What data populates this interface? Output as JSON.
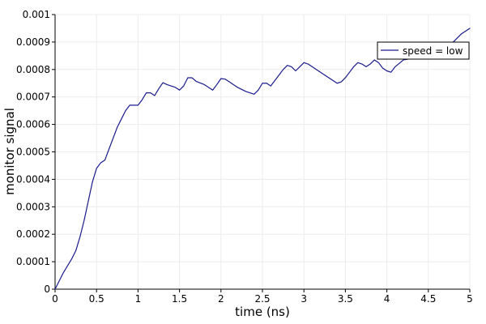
{
  "chart_data": {
    "type": "line",
    "title": "",
    "xlabel": "time (ns)",
    "ylabel": "monitor signal",
    "xlim": [
      0,
      5
    ],
    "ylim": [
      0,
      0.001
    ],
    "x_ticks": [
      "0",
      "0.5",
      "1",
      "1.5",
      "2",
      "2.5",
      "3",
      "3.5",
      "4",
      "4.5",
      "5"
    ],
    "y_ticks": [
      "0",
      "0.0001",
      "0.0002",
      "0.0003",
      "0.0004",
      "0.0005",
      "0.0006",
      "0.0007",
      "0.0008",
      "0.0009",
      "0.001"
    ],
    "grid": true,
    "legend_position": "top-right",
    "series": [
      {
        "name": "speed = low",
        "color": "#1a1a8c",
        "x": [
          0,
          0.1,
          0.2,
          0.25,
          0.3,
          0.35,
          0.4,
          0.45,
          0.5,
          0.55,
          0.6,
          0.65,
          0.7,
          0.75,
          0.8,
          0.85,
          0.9,
          0.95,
          1.0,
          1.05,
          1.1,
          1.15,
          1.2,
          1.25,
          1.3,
          1.35,
          1.4,
          1.45,
          1.5,
          1.55,
          1.6,
          1.65,
          1.7,
          1.8,
          1.9,
          1.95,
          2.0,
          2.05,
          2.1,
          2.2,
          2.3,
          2.4,
          2.45,
          2.5,
          2.55,
          2.6,
          2.65,
          2.7,
          2.75,
          2.8,
          2.85,
          2.9,
          2.95,
          3.0,
          3.05,
          3.1,
          3.2,
          3.3,
          3.4,
          3.45,
          3.5,
          3.55,
          3.6,
          3.65,
          3.7,
          3.75,
          3.8,
          3.85,
          3.9,
          3.95,
          4.0,
          4.05,
          4.1,
          4.2,
          4.3,
          4.4,
          4.5,
          4.6,
          4.7,
          4.8,
          4.9,
          5.0
        ],
        "values": [
          0,
          6e-05,
          0.00011,
          0.00014,
          0.00019,
          0.00025,
          0.00032,
          0.00039,
          0.00044,
          0.00046,
          0.00047,
          0.00051,
          0.00055,
          0.00059,
          0.00062,
          0.00065,
          0.00067,
          0.00067,
          0.00067,
          0.00069,
          0.000715,
          0.000715,
          0.000705,
          0.00073,
          0.000752,
          0.000745,
          0.00074,
          0.000735,
          0.000725,
          0.00074,
          0.00077,
          0.00077,
          0.000757,
          0.000745,
          0.000725,
          0.000745,
          0.000767,
          0.000765,
          0.000755,
          0.000735,
          0.00072,
          0.00071,
          0.000725,
          0.00075,
          0.00075,
          0.00074,
          0.00076,
          0.00078,
          0.0008,
          0.000815,
          0.00081,
          0.000795,
          0.00081,
          0.000825,
          0.00082,
          0.00081,
          0.00079,
          0.00077,
          0.00075,
          0.000755,
          0.00077,
          0.00079,
          0.00081,
          0.000825,
          0.00082,
          0.00081,
          0.00082,
          0.000835,
          0.000825,
          0.000805,
          0.000795,
          0.00079,
          0.00081,
          0.000835,
          0.00084,
          0.000845,
          0.000855,
          0.00087,
          0.00088,
          0.0009,
          0.00093,
          0.00095
        ]
      }
    ]
  }
}
